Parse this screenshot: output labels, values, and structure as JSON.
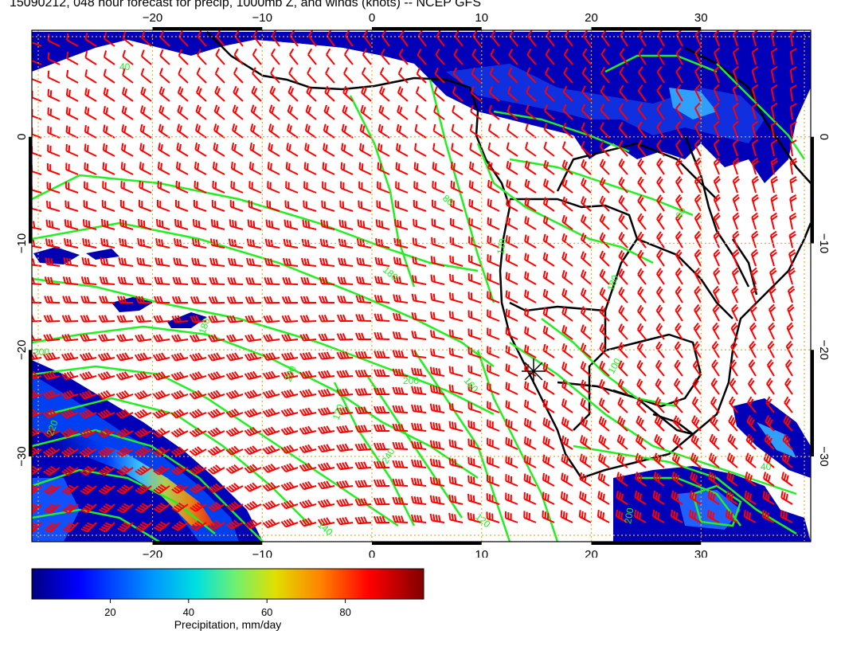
{
  "title": "15090212, 048 hour forecast for precip, 1000mb Z, and winds (knots) -- NCEP GFS",
  "map": {
    "lon_range": [
      -31,
      40
    ],
    "lat_range": [
      -38,
      10
    ],
    "lon_ticks": [
      -20,
      -10,
      0,
      10,
      20,
      30
    ],
    "lat_ticks": [
      0,
      -10,
      -20,
      -30
    ],
    "lon_tick_labels": [
      "−20",
      "−10",
      "0",
      "10",
      "20",
      "30"
    ],
    "lat_tick_labels": [
      "0",
      "−10",
      "−20",
      "−30"
    ],
    "contour_labels": [
      "40",
      "60",
      "80",
      "100",
      "120",
      "140",
      "160",
      "180",
      "200",
      "220",
      "240"
    ],
    "colors": {
      "barb": "#ff0000",
      "contour": "#22ee22",
      "coast": "#000000",
      "grid": "#e0b030"
    }
  },
  "colorbar": {
    "ticks": [
      20,
      40,
      60,
      80
    ],
    "tick_labels": [
      "20",
      "40",
      "60",
      "80"
    ],
    "range": [
      0,
      100
    ],
    "label": "Precipitation, mm/day",
    "colors": [
      "#000080",
      "#0000ff",
      "#0080ff",
      "#00e0e0",
      "#80ff80",
      "#e0e000",
      "#ff8000",
      "#ff0000",
      "#800000"
    ]
  }
}
